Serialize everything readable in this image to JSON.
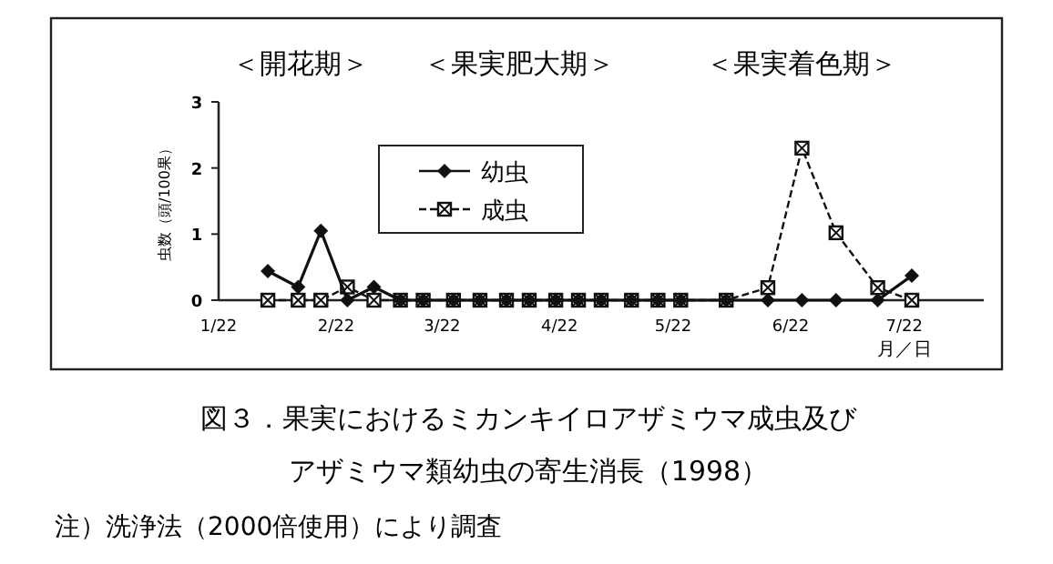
{
  "chart_data": {
    "type": "line",
    "title": "図３．果実におけるミカンキイロアザミウマ成虫及び",
    "subtitle": "アザミウマ類幼虫の寄生消長（1998）",
    "ylabel": "虫数（頭/100果）",
    "xlabel": "月／日",
    "annotations": [
      "＜開花期＞",
      "＜果実肥大期＞",
      "＜果実着色期＞",
      "注）洗浄法（2000倍使用）により調査"
    ],
    "x": [
      "1998-02-04",
      "1998-02-12",
      "1998-02-18",
      "1998-02-25",
      "1998-03-04",
      "1998-03-11",
      "1998-03-17",
      "1998-03-25",
      "1998-04-01",
      "1998-04-08",
      "1998-04-14",
      "1998-04-21",
      "1998-04-27",
      "1998-05-03",
      "1998-05-11",
      "1998-05-18",
      "1998-05-24",
      "1998-06-05",
      "1998-06-16",
      "1998-06-25",
      "1998-07-04",
      "1998-07-15",
      "1998-07-24"
    ],
    "series": [
      {
        "name": "幼虫",
        "color": "#111111",
        "marker": "diamond",
        "line_style": "solid",
        "values": [
          0.44,
          0.2,
          1.05,
          0,
          0.2,
          0,
          0,
          0,
          0,
          0,
          0,
          0,
          0,
          0,
          0,
          0,
          0,
          0,
          0,
          0,
          0,
          0,
          0.37
        ]
      },
      {
        "name": "成虫",
        "color": "#111111",
        "marker": "square",
        "line_style": "dashed",
        "values": [
          0,
          0,
          0,
          0.2,
          0,
          0,
          0,
          0,
          0,
          0,
          0,
          0,
          0,
          0,
          0,
          0,
          0,
          0,
          0.19,
          2.3,
          1.02,
          0.19,
          0
        ]
      }
    ],
    "xlim": [
      "1998-01-22",
      "1998-08-12"
    ],
    "xticks": [
      {
        "value": "1998-01-22",
        "label": "1/22"
      },
      {
        "value": "1998-02-22",
        "label": "2/22"
      },
      {
        "value": "1998-03-22",
        "label": "3/22"
      },
      {
        "value": "1998-04-22",
        "label": "4/22"
      },
      {
        "value": "1998-05-22",
        "label": "5/22"
      },
      {
        "value": "1998-06-22",
        "label": "6/22"
      },
      {
        "value": "1998-07-22",
        "label": "7/22"
      }
    ],
    "ylim": [
      0,
      3
    ],
    "yticks": [
      0,
      1,
      2,
      3
    ],
    "grid": false,
    "legend": "top"
  }
}
